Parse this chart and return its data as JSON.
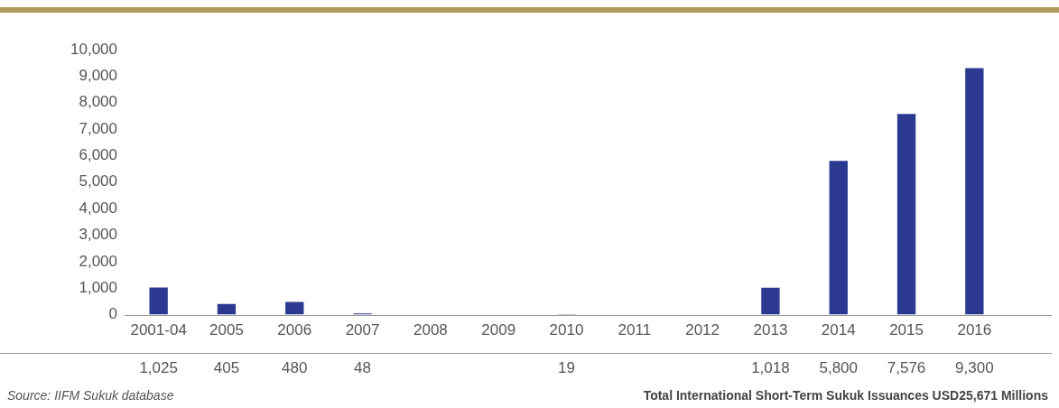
{
  "chart_data": {
    "type": "bar",
    "categories": [
      "2001-04",
      "2005",
      "2006",
      "2007",
      "2008",
      "2009",
      "2010",
      "2011",
      "2012",
      "2013",
      "2014",
      "2015",
      "2016"
    ],
    "values": [
      1025,
      405,
      480,
      48,
      null,
      null,
      19,
      null,
      null,
      1018,
      5800,
      7576,
      9300
    ],
    "value_labels": [
      "1,025",
      "405",
      "480",
      "48",
      null,
      null,
      "19",
      null,
      null,
      "1,018",
      "5,800",
      "7,576",
      "9,300"
    ],
    "color": "#2b3990",
    "ylim": [
      0,
      10000
    ],
    "yticks": [
      {
        "value": 0,
        "label": "0"
      },
      {
        "value": 1000,
        "label": "1,000"
      },
      {
        "value": 2000,
        "label": "2,000"
      },
      {
        "value": 3000,
        "label": "3,000"
      },
      {
        "value": 4000,
        "label": "4,000"
      },
      {
        "value": 5000,
        "label": "5,000"
      },
      {
        "value": 6000,
        "label": "6,000"
      },
      {
        "value": 7000,
        "label": "7,000"
      },
      {
        "value": 8000,
        "label": "8,000"
      },
      {
        "value": 9000,
        "label": "9,000"
      },
      {
        "value": 10000,
        "label": "10,000"
      }
    ],
    "annotations": [
      "Source: IIFM Sukuk database",
      "Total  International Short-Term Sukuk Issuances USD25,671 Millions"
    ]
  }
}
